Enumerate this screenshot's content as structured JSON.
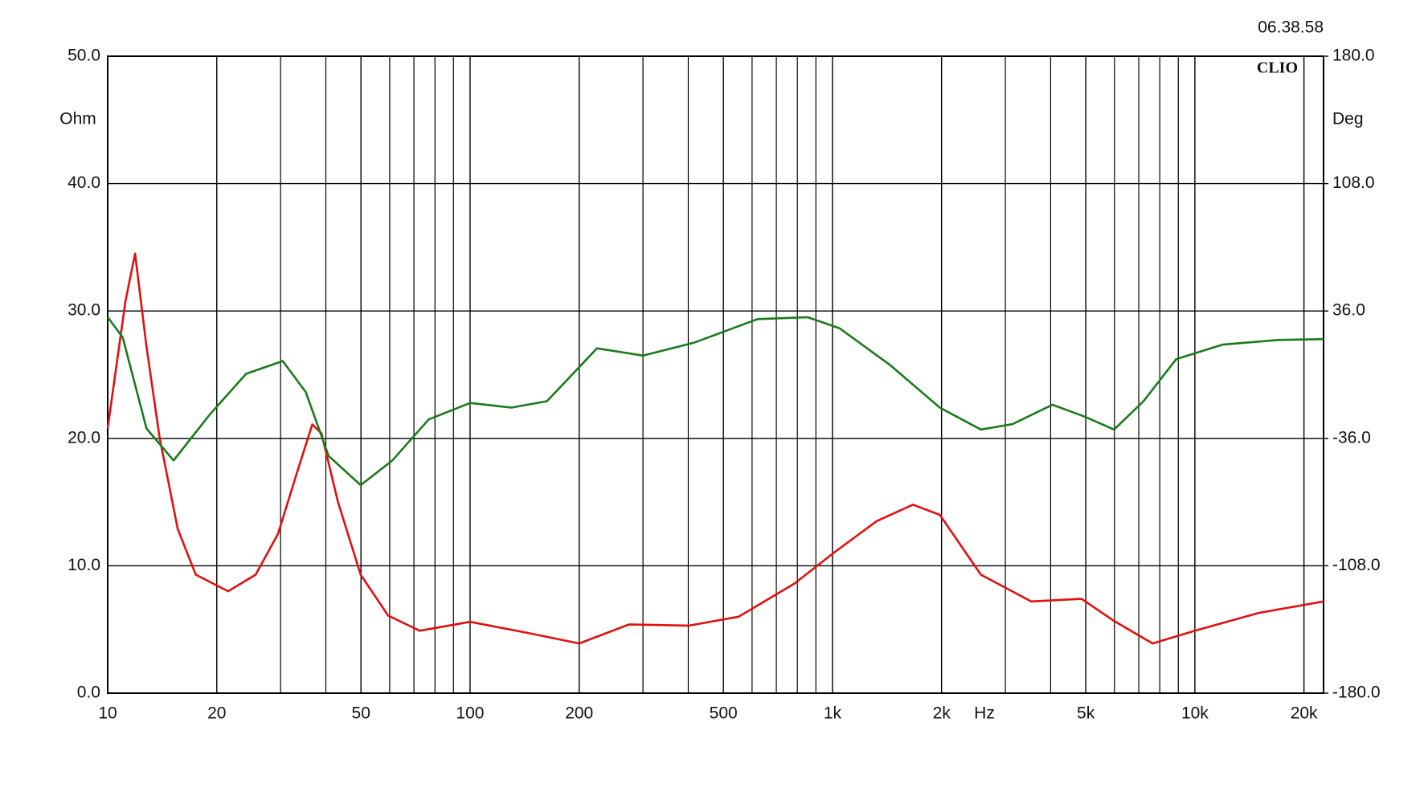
{
  "chart_data": {
    "type": "line",
    "timestamp": "06.38.58",
    "brand": "CLIO",
    "ylabel": "Ohm",
    "y2label": "Deg",
    "xlabel": "Hz",
    "log_x": true,
    "grid": true,
    "xlim": [
      10,
      22650
    ],
    "xticks": [
      10,
      20,
      50,
      100,
      200,
      500,
      {
        "value": 1000,
        "label": "1k"
      },
      {
        "value": 2000,
        "label": "2k"
      },
      {
        "value": 5000,
        "label": "5k"
      },
      {
        "value": 10000,
        "label": "10k"
      },
      {
        "value": 20000,
        "label": "20k"
      }
    ],
    "xminor": [
      30,
      40,
      60,
      70,
      80,
      90,
      300,
      400,
      600,
      700,
      800,
      900,
      3000,
      4000,
      6000,
      7000,
      8000,
      9000
    ],
    "ylim": [
      0,
      50
    ],
    "yticks": [
      {
        "value": 0,
        "label": "0.0"
      },
      {
        "value": 10,
        "label": "10.0"
      },
      {
        "value": 20,
        "label": "20.0"
      },
      {
        "value": 30,
        "label": "30.0"
      },
      {
        "value": 40,
        "label": "40.0"
      },
      {
        "value": 50,
        "label": "50.0"
      }
    ],
    "y2lim": [
      -180,
      180
    ],
    "y2ticks": [
      {
        "value": -180,
        "label": "-180.0"
      },
      {
        "value": -108,
        "label": "-108.0"
      },
      {
        "value": -36,
        "label": "-36.0"
      },
      {
        "value": 36,
        "label": "36.0"
      },
      {
        "value": 108,
        "label": "108.0"
      },
      {
        "value": 180,
        "label": "180.0"
      }
    ],
    "series": [
      {
        "color": "#e01010",
        "x": [
          10,
          11.2,
          11.9,
          12.8,
          13.9,
          15.6,
          17.5,
          21.5,
          25.6,
          29.5,
          33.2,
          36.7,
          38.9,
          43.2,
          49.9,
          59.4,
          72.6,
          100,
          146,
          200,
          275,
          402,
          551,
          785,
          1017,
          1323,
          1667,
          1978,
          2568,
          3534,
          4868,
          5960,
          7645,
          10000,
          15000,
          22650
        ],
        "values": [
          20.8,
          30.8,
          34.5,
          27.2,
          20.1,
          12.9,
          9.3,
          8.0,
          9.3,
          12.5,
          17.2,
          21.1,
          20.4,
          15.0,
          9.3,
          6.1,
          4.9,
          5.6,
          4.7,
          3.9,
          5.4,
          5.3,
          6.0,
          8.6,
          11.1,
          13.5,
          14.8,
          14.0,
          9.3,
          7.2,
          7.4,
          5.7,
          3.9,
          4.9,
          6.3,
          7.2
        ]
      },
      {
        "color": "#1b7a1b",
        "axis": "y2",
        "x": [
          10,
          11.0,
          12.8,
          15.2,
          19.1,
          24.1,
          30.4,
          35.2,
          40.7,
          49.9,
          61.0,
          76.9,
          100,
          130,
          163,
          224,
          300,
          414,
          621,
          853,
          1045,
          1437,
          1978,
          2568,
          3140,
          4045,
          4963,
          5983,
          7217,
          8886,
          11910,
          16930,
          22650
        ],
        "values": [
          32.5,
          21.1,
          -30.4,
          -48.5,
          -22.7,
          0.5,
          7.7,
          -9.8,
          -45.9,
          -62.4,
          -48.5,
          -25.3,
          -16.0,
          -18.6,
          -15.0,
          14.9,
          10.8,
          18.0,
          31.4,
          32.5,
          26.3,
          5.7,
          -18.6,
          -31.0,
          -27.9,
          -17.0,
          -23.7,
          -31.0,
          -15.0,
          8.8,
          17.0,
          19.6,
          20.1
        ]
      }
    ]
  }
}
